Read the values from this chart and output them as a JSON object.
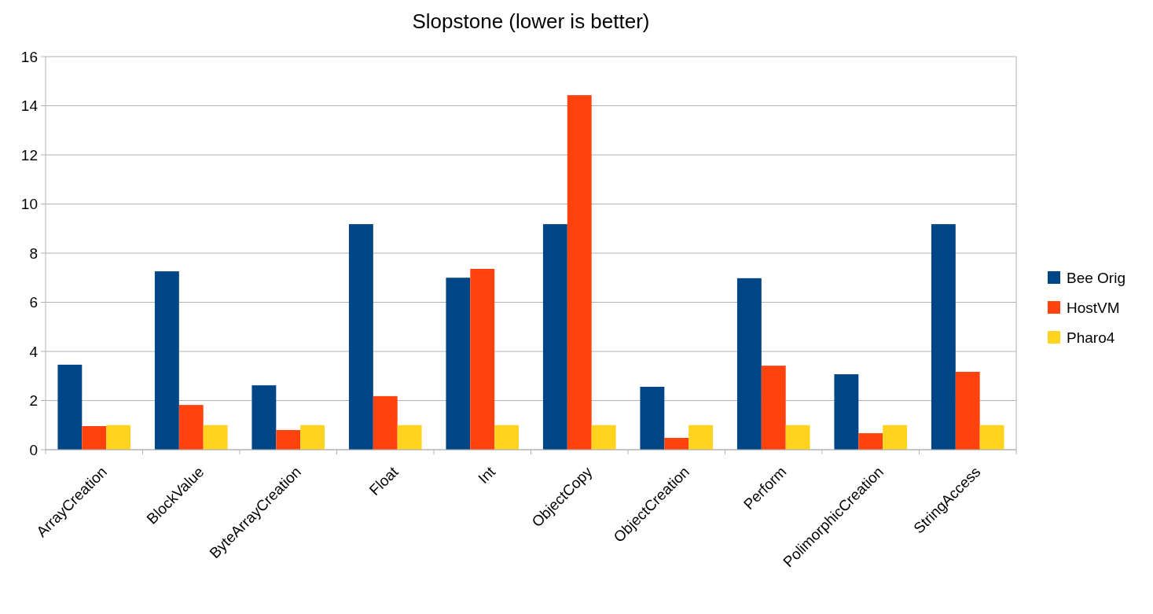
{
  "chart_data": {
    "type": "bar",
    "title": "Slopstone (lower is better)",
    "categories": [
      "ArrayCreation",
      "BlockValue",
      "ByteArrayCreation",
      "Float",
      "Int",
      "ObjectCopy",
      "ObjectCreation",
      "Perform",
      "PolimorphicCreation",
      "StringAccess"
    ],
    "series": [
      {
        "name": "Bee Orig",
        "color": "#004586",
        "values": [
          3.46,
          7.26,
          2.62,
          9.18,
          7.0,
          9.18,
          2.56,
          6.98,
          3.07,
          9.18
        ]
      },
      {
        "name": "HostVM",
        "color": "#ff420e",
        "values": [
          0.96,
          1.82,
          0.8,
          2.18,
          7.36,
          14.43,
          0.48,
          3.42,
          0.67,
          3.17
        ]
      },
      {
        "name": "Pharo4",
        "color": "#ffd320",
        "values": [
          1,
          1,
          1,
          1,
          1,
          1,
          1,
          1,
          1,
          1
        ]
      }
    ],
    "ylim": [
      0,
      16
    ],
    "yticks": [
      0,
      2,
      4,
      6,
      8,
      10,
      12,
      14,
      16
    ],
    "grid": "y",
    "legend": "right"
  }
}
